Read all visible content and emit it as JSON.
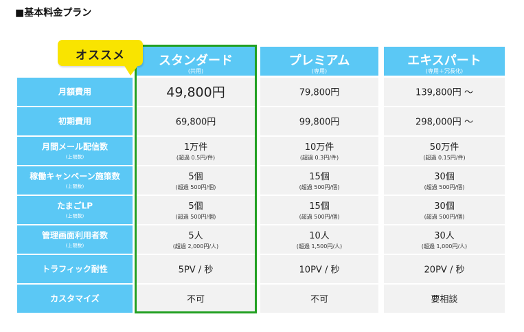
{
  "title": "■基本料金プラン",
  "badge": "オススメ",
  "plans": [
    {
      "name": "スタンダード",
      "sub": "(共用)"
    },
    {
      "name": "プレミアム",
      "sub": "(専用)"
    },
    {
      "name": "エキスパート",
      "sub": "(専用＋冗長化)"
    }
  ],
  "rows": [
    {
      "label": "月額費用",
      "label_sub": "",
      "cells": [
        {
          "main": "49,800円",
          "note": ""
        },
        {
          "main": "79,800円",
          "note": ""
        },
        {
          "main": "139,800円 ～",
          "note": ""
        }
      ]
    },
    {
      "label": "初期費用",
      "label_sub": "",
      "cells": [
        {
          "main": "69,800円",
          "note": ""
        },
        {
          "main": "99,800円",
          "note": ""
        },
        {
          "main": "298,000円 ～",
          "note": ""
        }
      ]
    },
    {
      "label": "月間メール配信数",
      "label_sub": "(上限数)",
      "cells": [
        {
          "main": "1万件",
          "note": "(超過 0.5円/件)"
        },
        {
          "main": "10万件",
          "note": "(超過 0.3円/件)"
        },
        {
          "main": "50万件",
          "note": "(超過 0.15円/件)"
        }
      ]
    },
    {
      "label": "稼働キャンペーン施策数",
      "label_sub": "(上限数)",
      "cells": [
        {
          "main": "5個",
          "note": "(超過 500円/個)"
        },
        {
          "main": "15個",
          "note": "(超過 500円/個)"
        },
        {
          "main": "30個",
          "note": "(超過 500円/個)"
        }
      ]
    },
    {
      "label": "たまごLP",
      "label_sub": "(上限数)",
      "cells": [
        {
          "main": "5個",
          "note": "(超過 500円/個)"
        },
        {
          "main": "15個",
          "note": "(超過 500円/個)"
        },
        {
          "main": "30個",
          "note": "(超過 500円/個)"
        }
      ]
    },
    {
      "label": "管理画面利用者数",
      "label_sub": "(上限数)",
      "cells": [
        {
          "main": "5人",
          "note": "(超過 2,000円/人)"
        },
        {
          "main": "10人",
          "note": "(超過 1,500円/人)"
        },
        {
          "main": "30人",
          "note": "(超過 1,000円/人)"
        }
      ]
    },
    {
      "label": "トラフィック耐性",
      "label_sub": "",
      "cells": [
        {
          "main": "5PV / 秒",
          "note": ""
        },
        {
          "main": "10PV / 秒",
          "note": ""
        },
        {
          "main": "20PV / 秒",
          "note": ""
        }
      ]
    },
    {
      "label": "カスタマイズ",
      "label_sub": "",
      "cells": [
        {
          "main": "不可",
          "note": ""
        },
        {
          "main": "不可",
          "note": ""
        },
        {
          "main": "要相談",
          "note": ""
        }
      ]
    }
  ],
  "colors": {
    "header": "#5bc8f5",
    "cell": "#f2f2f2",
    "highlight": "#22a022",
    "badge": "#f9e400"
  }
}
